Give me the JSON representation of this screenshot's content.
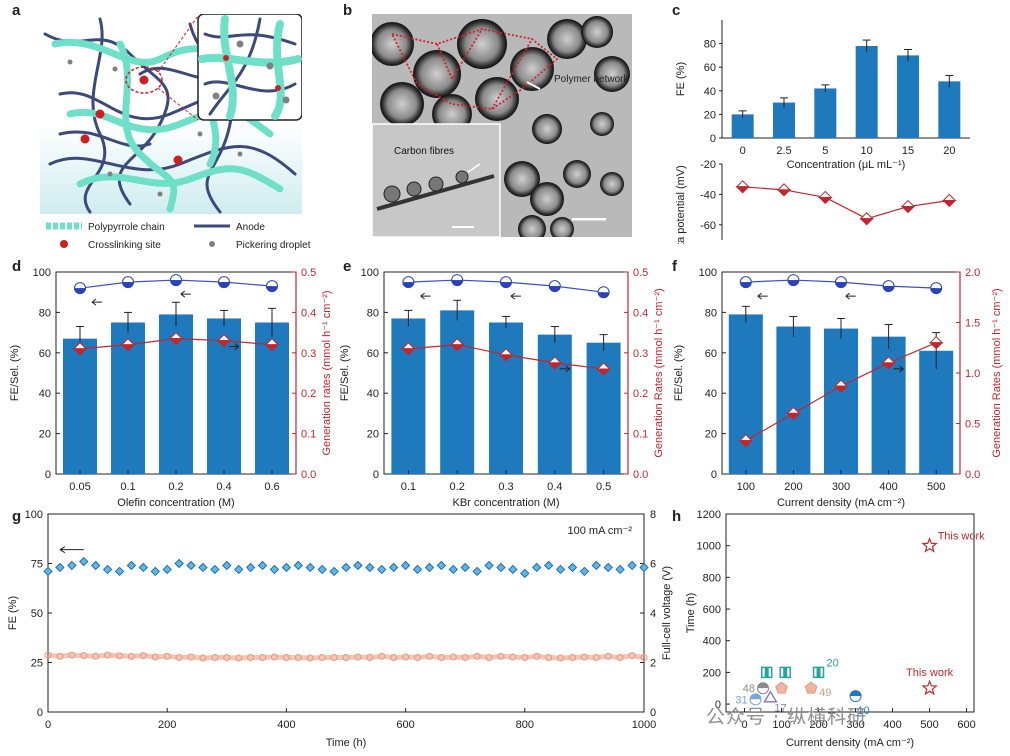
{
  "panel_labels": {
    "a": "a",
    "b": "b",
    "c": "c",
    "d": "d",
    "e": "e",
    "f": "f",
    "g": "g",
    "h": "h"
  },
  "schematic": {
    "legend": [
      {
        "label": "Polypyrrole chain",
        "icon": "teal-chain-icon",
        "color": "#6ee0c8"
      },
      {
        "label": "Anode",
        "icon": "navy-line-icon",
        "color": "#3b4a7a"
      },
      {
        "label": "Crosslinking site",
        "icon": "red-dot-icon",
        "color": "#cc1f1f"
      },
      {
        "label": "Pickering droplet",
        "icon": "grey-dot-icon",
        "color": "#808080"
      }
    ]
  },
  "micrograph": {
    "polymer_label": "Polymer network",
    "inset_label": "Carbon fibres"
  },
  "colors": {
    "bar": "#1f79bd",
    "red": "#c0272d",
    "blue_line": "#3a4fc4",
    "orange": "#e8967a",
    "teal": "#23a59a"
  },
  "watermark": "公众号 · 纵横科研",
  "chart_data": [
    {
      "id": "c",
      "type": "bar",
      "categories": [
        "0",
        "2.5",
        "5",
        "10",
        "15",
        "20"
      ],
      "series": [
        {
          "values": [
            20,
            30,
            42,
            78,
            70,
            48
          ],
          "errors": [
            3,
            4,
            3,
            5,
            5,
            5
          ]
        }
      ],
      "xlabel": "Concentration (μL mL⁻¹)",
      "ylabel": "FE (%)",
      "ylim": [
        0,
        100
      ],
      "yticks": [
        0,
        20,
        40,
        60,
        80
      ],
      "secondary": {
        "ylabel": "Zeta potential (mV)",
        "values": [
          -35,
          -37,
          -42,
          -56,
          -48,
          -44
        ],
        "ylim": [
          -70,
          -20
        ],
        "yticks": [
          -20,
          -40,
          -60
        ]
      }
    },
    {
      "id": "d",
      "type": "bar",
      "categories": [
        "0.05",
        "0.1",
        "0.2",
        "0.4",
        "0.6"
      ],
      "series": [
        {
          "values": [
            67,
            75,
            79,
            77,
            75
          ],
          "errors": [
            6,
            5,
            6,
            4,
            7
          ]
        }
      ],
      "line_left": [
        92,
        95,
        96,
        95,
        93
      ],
      "right_series": {
        "values": [
          0.31,
          0.32,
          0.335,
          0.33,
          0.32
        ],
        "ylim": [
          0,
          0.5
        ],
        "yticks": [
          0.0,
          0.1,
          0.2,
          0.3,
          0.4,
          0.5
        ],
        "ylabel": "Generation rates (mmol h⁻¹ cm⁻²)"
      },
      "xlabel": "Olefin concentration (M)",
      "ylabel": "FE/Sel. (%)",
      "ylim": [
        0,
        100
      ],
      "yticks": [
        0,
        20,
        40,
        60,
        80,
        100
      ]
    },
    {
      "id": "e",
      "type": "bar",
      "categories": [
        "0.1",
        "0.2",
        "0.3",
        "0.4",
        "0.5"
      ],
      "series": [
        {
          "values": [
            77,
            81,
            75,
            69,
            65
          ],
          "errors": [
            4,
            5,
            3,
            4,
            4
          ]
        }
      ],
      "line_left": [
        95,
        96,
        95,
        93,
        90
      ],
      "right_series": {
        "values": [
          0.31,
          0.32,
          0.295,
          0.275,
          0.26
        ],
        "ylim": [
          0,
          0.5
        ],
        "yticks": [
          0.0,
          0.1,
          0.2,
          0.3,
          0.4,
          0.5
        ],
        "ylabel": "Generation Rates (mmol h⁻¹ cm⁻²)"
      },
      "xlabel": "KBr concentration (M)",
      "ylabel": "FE/Sel. (%)",
      "ylim": [
        0,
        100
      ],
      "yticks": [
        0,
        20,
        40,
        60,
        80,
        100
      ]
    },
    {
      "id": "f",
      "type": "bar",
      "categories": [
        "100",
        "200",
        "300",
        "400",
        "500"
      ],
      "series": [
        {
          "values": [
            79,
            73,
            72,
            68,
            61
          ],
          "errors": [
            4,
            5,
            5,
            6,
            9
          ]
        }
      ],
      "line_left": [
        95,
        96,
        95,
        93,
        92
      ],
      "right_series": {
        "values": [
          0.33,
          0.6,
          0.87,
          1.1,
          1.3
        ],
        "ylim": [
          0,
          2.0
        ],
        "yticks": [
          0.0,
          0.5,
          1.0,
          1.5,
          2.0
        ],
        "ylabel": "Generation Rates (mmol h⁻¹ cm⁻²)"
      },
      "xlabel": "Current density (mA cm⁻²)",
      "ylabel": "FE/Sel. (%)",
      "ylim": [
        0,
        100
      ],
      "yticks": [
        0,
        20,
        40,
        60,
        80,
        100
      ]
    },
    {
      "id": "g",
      "type": "line",
      "annotation": "100 mA cm⁻²",
      "xlabel": "Time (h)",
      "xlim": [
        0,
        1000
      ],
      "xticks": [
        0,
        200,
        400,
        600,
        800,
        1000
      ],
      "ylabel": "FE (%)",
      "ylim": [
        0,
        100
      ],
      "yticks": [
        0,
        25,
        50,
        75,
        100
      ],
      "y2label": "Full-cell voltage (V)",
      "y2lim": [
        0,
        8
      ],
      "y2ticks": [
        0,
        2,
        4,
        6,
        8
      ],
      "series": [
        {
          "axis": "left",
          "x": [
            0,
            20,
            40,
            60,
            80,
            100,
            120,
            140,
            160,
            180,
            200,
            220,
            240,
            260,
            280,
            300,
            320,
            340,
            360,
            380,
            400,
            420,
            440,
            460,
            480,
            500,
            520,
            540,
            560,
            580,
            600,
            620,
            640,
            660,
            680,
            700,
            720,
            740,
            760,
            780,
            800,
            820,
            840,
            860,
            880,
            900,
            920,
            940,
            960,
            980,
            1000
          ],
          "y": [
            71,
            73,
            74,
            76,
            74,
            72,
            71,
            74,
            73,
            71,
            72,
            75,
            74,
            73,
            72,
            74,
            72,
            73,
            74,
            72,
            73,
            74,
            73,
            72,
            71,
            73,
            74,
            73,
            72,
            73,
            74,
            72,
            73,
            74,
            72,
            73,
            71,
            74,
            73,
            72,
            70,
            73,
            74,
            72,
            73,
            71,
            74,
            73,
            72,
            74,
            73
          ]
        },
        {
          "axis": "right",
          "x": [
            0,
            20,
            40,
            60,
            80,
            100,
            120,
            140,
            160,
            180,
            200,
            220,
            240,
            260,
            280,
            300,
            320,
            340,
            360,
            380,
            400,
            420,
            440,
            460,
            480,
            500,
            520,
            540,
            560,
            580,
            600,
            620,
            640,
            660,
            680,
            700,
            720,
            740,
            760,
            780,
            800,
            820,
            840,
            860,
            880,
            900,
            920,
            940,
            960,
            980,
            1000
          ],
          "y": [
            2.3,
            2.25,
            2.3,
            2.28,
            2.25,
            2.3,
            2.27,
            2.25,
            2.28,
            2.22,
            2.25,
            2.2,
            2.22,
            2.18,
            2.2,
            2.2,
            2.18,
            2.2,
            2.2,
            2.22,
            2.2,
            2.2,
            2.18,
            2.2,
            2.2,
            2.2,
            2.22,
            2.2,
            2.25,
            2.2,
            2.22,
            2.2,
            2.25,
            2.2,
            2.22,
            2.2,
            2.25,
            2.2,
            2.25,
            2.22,
            2.2,
            2.25,
            2.2,
            2.18,
            2.2,
            2.22,
            2.2,
            2.25,
            2.2,
            2.28,
            2.2
          ]
        }
      ]
    },
    {
      "id": "h",
      "type": "scatter",
      "xlabel": "Current density (mA cm⁻²)",
      "xlim": [
        -50,
        620
      ],
      "xticks": [
        0,
        100,
        200,
        300,
        400,
        500,
        600
      ],
      "ylabel": "Time (h)",
      "ylim": [
        -50,
        1200
      ],
      "yticks": [
        0,
        200,
        400,
        600,
        800,
        1000,
        1200
      ],
      "points": [
        {
          "x": 500,
          "y": 1000,
          "label": "This work",
          "marker": "star",
          "color": "#c0272d"
        },
        {
          "x": 500,
          "y": 100,
          "label": "This work",
          "marker": "star",
          "color": "#c0272d"
        },
        {
          "x": 200,
          "y": 200,
          "label": "20",
          "marker": "square",
          "color": "#23a59a"
        },
        {
          "x": 60,
          "y": 200,
          "label": "",
          "marker": "square",
          "color": "#23a59a"
        },
        {
          "x": 110,
          "y": 200,
          "label": "",
          "marker": "square",
          "color": "#23a59a"
        },
        {
          "x": 100,
          "y": 100,
          "label": "",
          "marker": "pentagon",
          "color": "#e8967a"
        },
        {
          "x": 180,
          "y": 100,
          "label": "49",
          "marker": "pentagon",
          "color": "#e8967a"
        },
        {
          "x": 50,
          "y": 100,
          "label": "48",
          "marker": "circle",
          "color": "#8a8a8a"
        },
        {
          "x": 300,
          "y": 50,
          "label": "10",
          "marker": "circle",
          "color": "#1f79bd"
        },
        {
          "x": 30,
          "y": 30,
          "label": "31",
          "marker": "circle",
          "color": "#7aa7d8"
        },
        {
          "x": 70,
          "y": 40,
          "label": "17",
          "marker": "triangle",
          "color": "#8a7ac8"
        }
      ]
    }
  ]
}
